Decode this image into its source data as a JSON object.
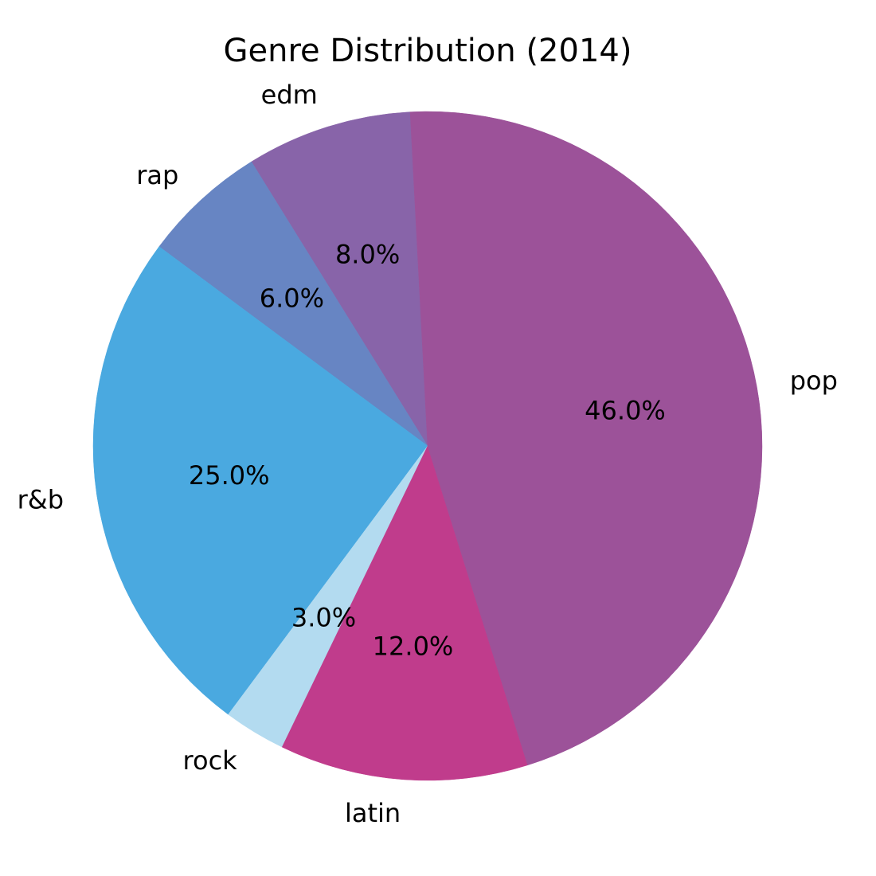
{
  "chart_data": {
    "type": "pie",
    "title": "Genre Distribution (2014)",
    "start_angle_deg": 93,
    "direction": "counterclockwise",
    "slices": [
      {
        "label": "edm",
        "value": 8.0,
        "pct_label": "8.0%",
        "color": "#8864a9"
      },
      {
        "label": "rap",
        "value": 6.0,
        "pct_label": "6.0%",
        "color": "#6785c3"
      },
      {
        "label": "r&b",
        "value": 25.0,
        "pct_label": "25.0%",
        "color": "#4aa9e0"
      },
      {
        "label": "rock",
        "value": 3.0,
        "pct_label": "3.0%",
        "color": "#b3dbf0"
      },
      {
        "label": "latin",
        "value": 12.0,
        "pct_label": "12.0%",
        "color": "#c03c8c"
      },
      {
        "label": "pop",
        "value": 46.0,
        "pct_label": "46.0%",
        "color": "#9c5299"
      }
    ]
  }
}
